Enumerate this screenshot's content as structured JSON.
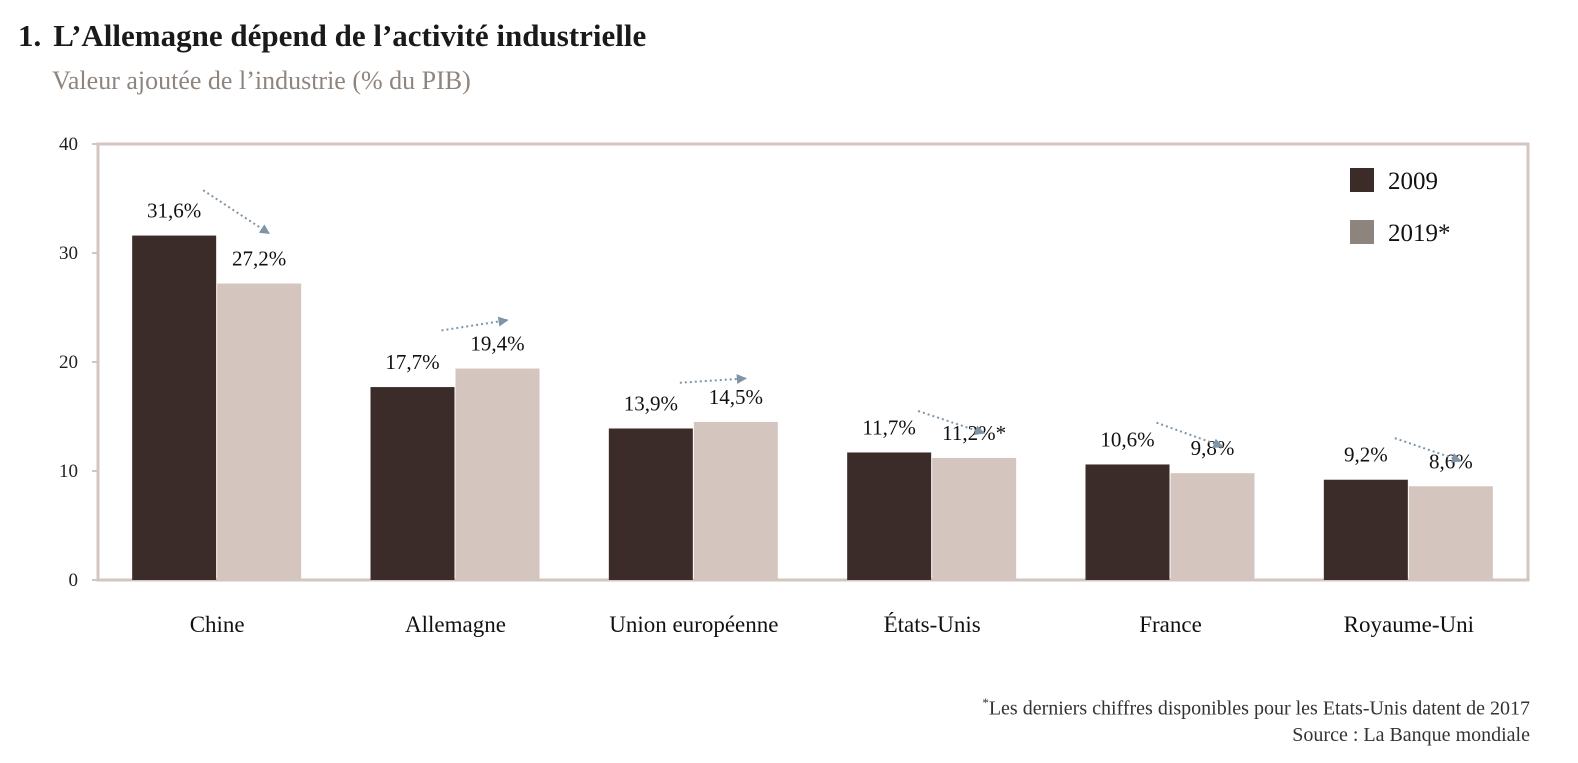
{
  "header": {
    "number": "1.",
    "title": "L’Allemagne dépend de l’activité industrielle",
    "subtitle": "Valeur ajoutée de l’industrie (% du PIB)"
  },
  "footer": {
    "note_mark": "*",
    "note": "Les derniers chiffres disponibles pour les Etats-Unis datent de 2017",
    "source": "Source : La Banque mondiale"
  },
  "colors": {
    "series_2009": "#3b2c29",
    "series_2019": "#d4c5bf",
    "arrow": "#7f95a6",
    "frame": "#d3c6c0",
    "legend_2019_swatch": "#8d847d"
  },
  "chart_data": {
    "type": "bar",
    "categories": [
      "Chine",
      "Allemagne",
      "Union européenne",
      "États-Unis",
      "France",
      "Royaume-Uni"
    ],
    "series": [
      {
        "name": "2009",
        "values": [
          31.6,
          17.7,
          13.9,
          11.7,
          10.6,
          9.2
        ],
        "labels": [
          "31,6%",
          "17,7%",
          "13,9%",
          "11,7%",
          "10,6%",
          "9,2%"
        ]
      },
      {
        "name": "2019*",
        "values": [
          27.2,
          19.4,
          14.5,
          11.2,
          9.8,
          8.6
        ],
        "labels": [
          "27,2%",
          "19,4%",
          "14,5%",
          "11,2%*",
          "9,8%",
          "8,6%"
        ]
      }
    ],
    "yticks": [
      "0",
      "10",
      "20",
      "30",
      "40"
    ],
    "ylim": [
      0,
      40
    ],
    "legend": [
      "2009",
      "2019*"
    ],
    "legend_position": "top-right",
    "grid": false,
    "trend_arrows": true
  }
}
